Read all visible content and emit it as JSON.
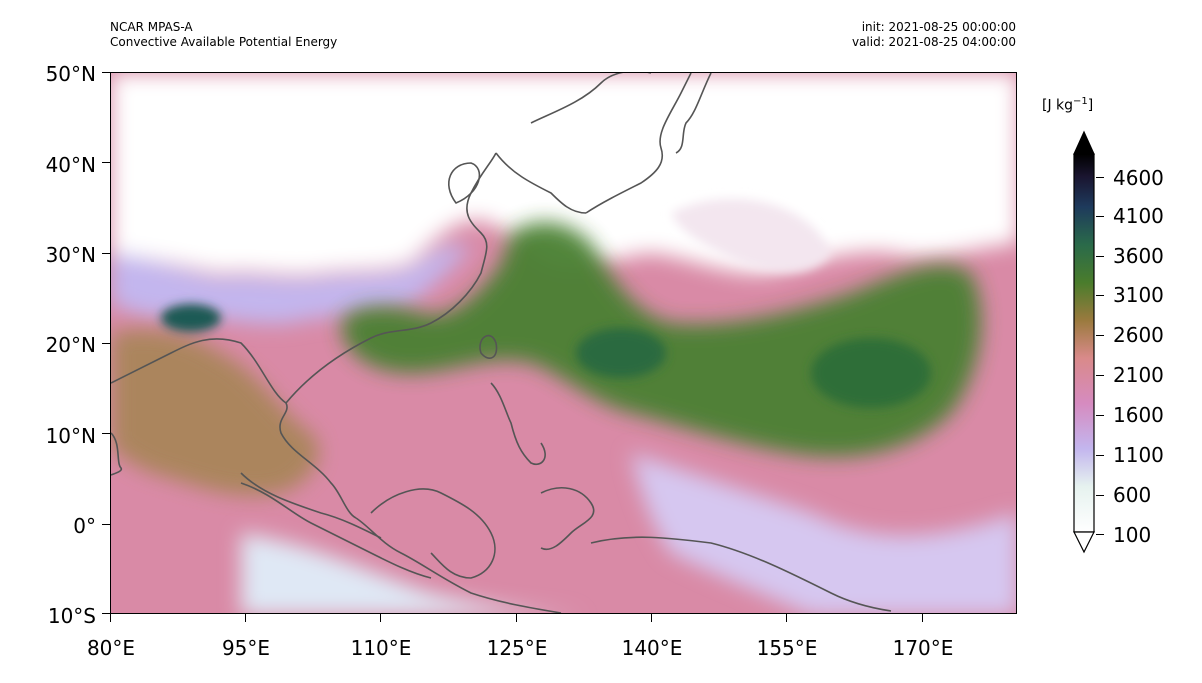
{
  "header": {
    "model": "NCAR MPAS-A",
    "field": "Convective Available Potential Energy",
    "init": "init: 2021-08-25 00:00:00",
    "valid": "valid: 2021-08-25 04:00:00"
  },
  "axes": {
    "lat_labels": [
      "50°N",
      "40°N",
      "30°N",
      "20°N",
      "10°N",
      "0°",
      "10°S"
    ],
    "lon_labels": [
      "80°E",
      "95°E",
      "110°E",
      "125°E",
      "140°E",
      "155°E",
      "170°E"
    ],
    "lat_range": [
      -10,
      50
    ],
    "lon_range": [
      80,
      180.5
    ]
  },
  "colorbar": {
    "units_prefix": "[J kg",
    "units_exp": "−1",
    "units_suffix": "]",
    "ticks": [
      "4600",
      "4100",
      "3600",
      "3100",
      "2600",
      "2100",
      "1600",
      "1100",
      "600",
      "100"
    ],
    "colormap": "cubehelix-like (white → lavender → pink → olive → green → dark navy → black)",
    "extend": "both"
  },
  "colors": {
    "low": "#ffffff",
    "lavender": "#c3b6ee",
    "pink": "#d98aa6",
    "olive": "#8a7a3a",
    "green": "#3c7a2e",
    "teal": "#1e5a55",
    "navy": "#1a2040",
    "high": "#000000",
    "coastline": "#555555"
  }
}
